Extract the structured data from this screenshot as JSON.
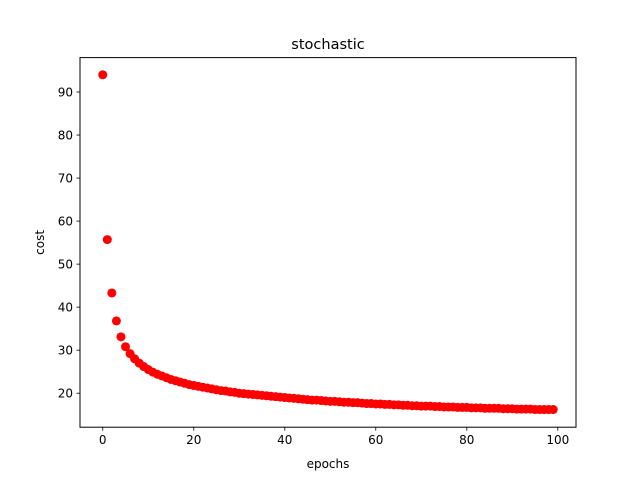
{
  "chart_data": {
    "type": "scatter",
    "title": "stochastic",
    "xlabel": "epochs",
    "ylabel": "cost",
    "xlim": [
      -5,
      104
    ],
    "ylim": [
      12.1,
      98
    ],
    "xticks": [
      0,
      20,
      40,
      60,
      80,
      100
    ],
    "yticks": [
      20,
      30,
      40,
      50,
      60,
      70,
      80,
      90
    ],
    "grid": false,
    "marker_color": "#ff0000",
    "series": [
      {
        "x": [
          0,
          1,
          2,
          3,
          4,
          5,
          6,
          7,
          8,
          9,
          10,
          11,
          12,
          13,
          14,
          15,
          16,
          17,
          18,
          19,
          20,
          21,
          22,
          23,
          24,
          25,
          26,
          27,
          28,
          29,
          30,
          31,
          32,
          33,
          34,
          35,
          36,
          37,
          38,
          39,
          40,
          41,
          42,
          43,
          44,
          45,
          46,
          47,
          48,
          49,
          50,
          51,
          52,
          53,
          54,
          55,
          56,
          57,
          58,
          59,
          60,
          61,
          62,
          63,
          64,
          65,
          66,
          67,
          68,
          69,
          70,
          71,
          72,
          73,
          74,
          75,
          76,
          77,
          78,
          79,
          80,
          81,
          82,
          83,
          84,
          85,
          86,
          87,
          88,
          89,
          90,
          91,
          92,
          93,
          94,
          95,
          96,
          97,
          98,
          99
        ],
        "y": [
          94.0,
          55.7,
          43.3,
          36.8,
          33.1,
          30.8,
          29.2,
          28.0,
          27.0,
          26.2,
          25.5,
          24.9,
          24.4,
          24.0,
          23.6,
          23.2,
          22.9,
          22.6,
          22.3,
          22.0,
          21.8,
          21.6,
          21.4,
          21.2,
          21.0,
          20.8,
          20.6,
          20.5,
          20.3,
          20.2,
          20.0,
          19.9,
          19.8,
          19.7,
          19.6,
          19.5,
          19.4,
          19.3,
          19.2,
          19.1,
          19.0,
          18.9,
          18.8,
          18.7,
          18.6,
          18.5,
          18.4,
          18.4,
          18.3,
          18.2,
          18.1,
          18.1,
          18.0,
          17.9,
          17.9,
          17.8,
          17.8,
          17.7,
          17.6,
          17.6,
          17.5,
          17.5,
          17.4,
          17.4,
          17.3,
          17.3,
          17.2,
          17.2,
          17.1,
          17.1,
          17.0,
          17.0,
          17.0,
          16.9,
          16.9,
          16.8,
          16.8,
          16.8,
          16.7,
          16.7,
          16.7,
          16.6,
          16.6,
          16.6,
          16.5,
          16.5,
          16.5,
          16.5,
          16.4,
          16.4,
          16.4,
          16.3,
          16.3,
          16.3,
          16.3,
          16.2,
          16.2,
          16.2,
          16.2,
          16.2
        ]
      }
    ]
  }
}
